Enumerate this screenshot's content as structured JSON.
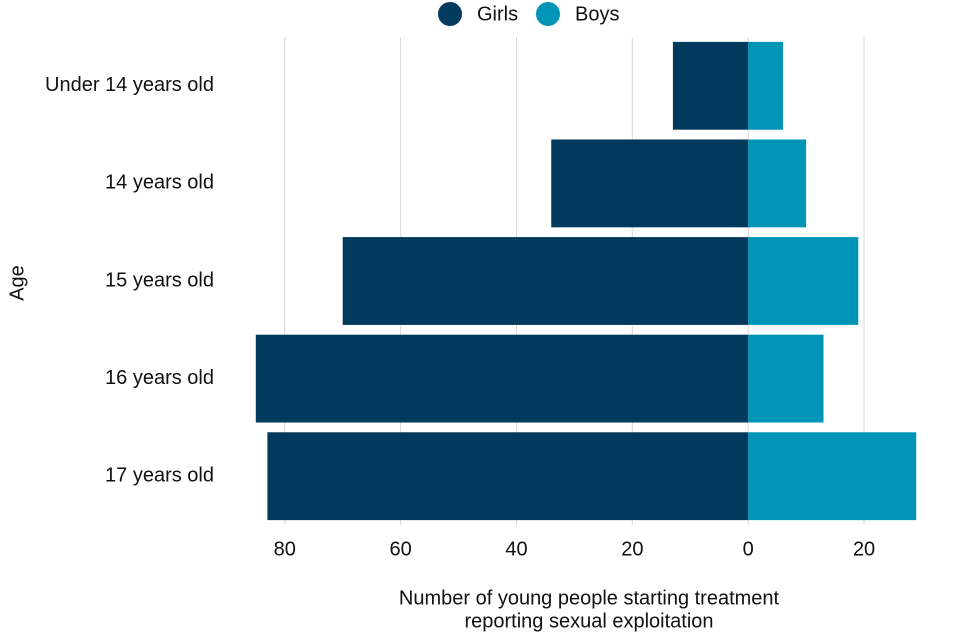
{
  "chart_data": {
    "type": "bar",
    "orientation": "horizontal",
    "stacked": "diverging",
    "categories": [
      "Under 14 years old",
      "14 years old",
      "15 years old",
      "16 years old",
      "17 years old"
    ],
    "series": [
      {
        "name": "Girls",
        "color": "#023a5e",
        "values": [
          -13,
          -34,
          -70,
          -85,
          -83
        ]
      },
      {
        "name": "Boys",
        "color": "#0095b6",
        "values": [
          6,
          10,
          19,
          13,
          29
        ]
      }
    ],
    "xlim": [
      -86,
      30
    ],
    "xticks": [
      {
        "value": -80,
        "label": "80"
      },
      {
        "value": -60,
        "label": "60"
      },
      {
        "value": -40,
        "label": "40"
      },
      {
        "value": -20,
        "label": "20"
      },
      0,
      20
    ],
    "x_label": [
      "Number of young people starting treatment",
      "reporting sexual exploitation"
    ],
    "y_label": "Age",
    "grid": true,
    "legend": "top"
  }
}
